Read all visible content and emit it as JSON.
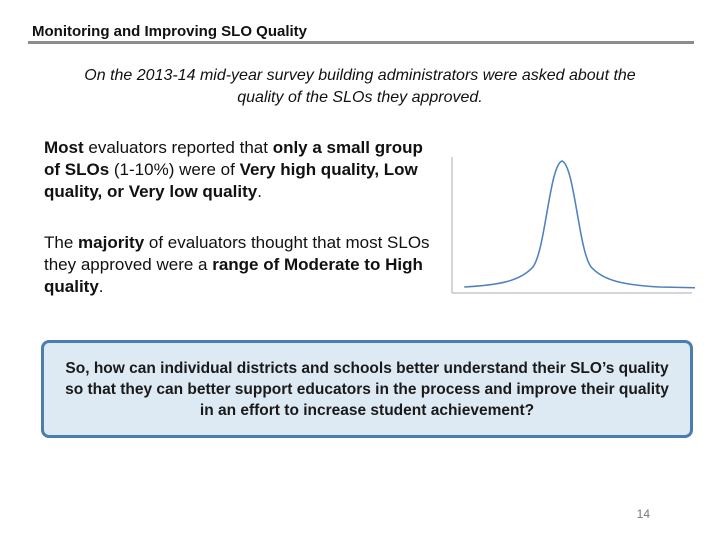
{
  "header": {
    "title": "Monitoring and Improving SLO Quality"
  },
  "subtitle": "On the 2013-14 mid-year survey building administrators were asked about the quality of the SLOs they approved.",
  "paragraphs": [
    [
      {
        "text": "Most",
        "bold": true
      },
      {
        "text": " evaluators reported that ",
        "bold": false
      },
      {
        "text": "only a small group of SLOs",
        "bold": true
      },
      {
        "text": " (1-10%) were of ",
        "bold": false
      },
      {
        "text": "Very high quality, Low quality, or Very low quality",
        "bold": true
      },
      {
        "text": ".",
        "bold": false
      }
    ],
    [
      {
        "text": "The ",
        "bold": false
      },
      {
        "text": "majority",
        "bold": true
      },
      {
        "text": " of evaluators thought that most SLOs they approved were a ",
        "bold": false
      },
      {
        "text": "range of Moderate to High quality",
        "bold": true
      },
      {
        "text": ".",
        "bold": false
      }
    ]
  ],
  "callout": "So, how can individual districts and schools better understand their SLO’s quality so that they can better support educators in the process and improve their quality in an effort to increase student achievement?",
  "page_number": "14"
}
